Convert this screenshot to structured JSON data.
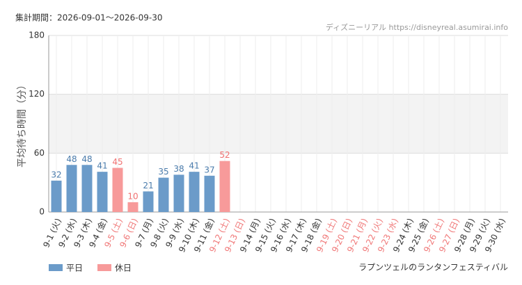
{
  "chart_data": {
    "type": "bar",
    "title": "集計期間：2026-09-01～2026-09-30",
    "source": "ディズニーリアル https://disneyreal.asumirai.info",
    "subtitle": "ラプンツェルのランタンフェスティバル",
    "y_label": "平均待ち時間（分）",
    "categories": [
      "9-1 (火)",
      "9-2 (水)",
      "9-3 (木)",
      "9-4 (金)",
      "9-5 (土)",
      "9-6 (日)",
      "9-7 (月)",
      "9-8 (火)",
      "9-9 (水)",
      "9-10 (木)",
      "9-11 (金)",
      "9-12 (土)",
      "9-13 (日)",
      "9-14 (月)",
      "9-15 (火)",
      "9-16 (水)",
      "9-17 (木)",
      "9-18 (金)",
      "9-19 (土)",
      "9-20 (日)",
      "9-21 (月)",
      "9-22 (火)",
      "9-23 (水)",
      "9-24 (木)",
      "9-25 (金)",
      "9-26 (土)",
      "9-27 (日)",
      "9-28 (月)",
      "9-29 (火)",
      "9-30 (水)"
    ],
    "category_label_colors": [
      "#333",
      "#333",
      "#333",
      "#333",
      "#f07878",
      "#f07878",
      "#333",
      "#333",
      "#333",
      "#333",
      "#333",
      "#f07878",
      "#f07878",
      "#333",
      "#333",
      "#333",
      "#333",
      "#333",
      "#f07878",
      "#f07878",
      "#f07878",
      "#f07878",
      "#f07878",
      "#333",
      "#333",
      "#f07878",
      "#f07878",
      "#333",
      "#333",
      "#333"
    ],
    "series": [
      {
        "name": "平日",
        "color": "#6b9bc9",
        "label_color": "#4a7bab",
        "values": [
          32,
          48,
          48,
          41,
          null,
          null,
          21,
          35,
          38,
          41,
          37,
          null,
          null,
          null,
          null,
          null,
          null,
          null,
          null,
          null,
          null,
          null,
          null,
          null,
          null,
          null,
          null,
          null,
          null,
          null
        ]
      },
      {
        "name": "休日",
        "color": "#f79a9a",
        "label_color": "#f07070",
        "values": [
          null,
          null,
          null,
          null,
          45,
          10,
          null,
          null,
          null,
          null,
          null,
          52,
          null,
          null,
          null,
          null,
          null,
          null,
          null,
          null,
          null,
          null,
          null,
          null,
          null,
          null,
          null,
          null,
          null,
          null
        ]
      }
    ],
    "ylim": [
      0,
      180
    ],
    "yticks": [
      0,
      60,
      120,
      180
    ],
    "grid": true
  }
}
